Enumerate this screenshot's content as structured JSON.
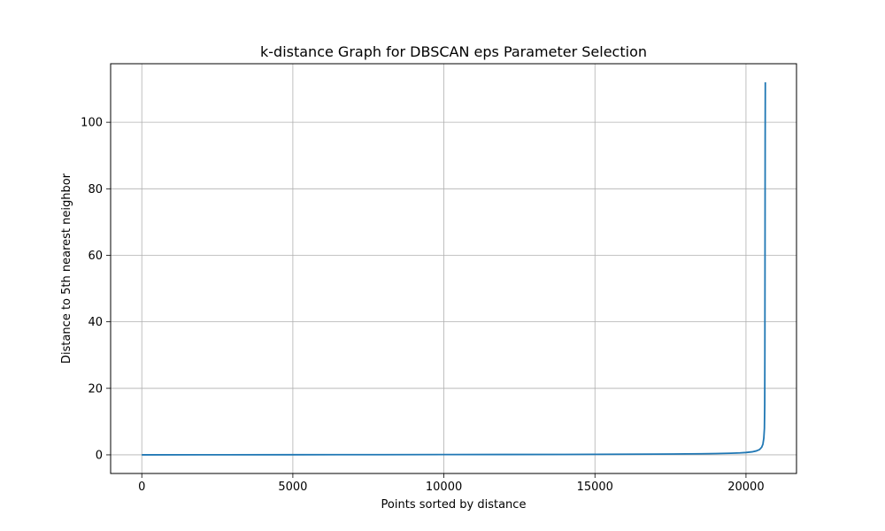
{
  "chart_data": {
    "type": "line",
    "title": "k-distance Graph for DBSCAN eps Parameter Selection",
    "xlabel": "Points sorted by distance",
    "ylabel": "Distance to 5th nearest neighbor",
    "xlim": [
      -1032,
      21672
    ],
    "ylim": [
      -5.6,
      117.6
    ],
    "xticks": [
      0,
      5000,
      10000,
      15000,
      20000
    ],
    "xtick_labels": [
      "0",
      "5000",
      "10000",
      "15000",
      "20000"
    ],
    "yticks": [
      0,
      20,
      40,
      60,
      80,
      100
    ],
    "ytick_labels": [
      "0",
      "20",
      "40",
      "60",
      "80",
      "100"
    ],
    "grid": true,
    "series": [
      {
        "color": "#1f77b4",
        "x": [
          0,
          2000,
          5000,
          8000,
          10000,
          12000,
          14000,
          15000,
          16000,
          17000,
          18000,
          18500,
          19000,
          19500,
          19800,
          20000,
          20200,
          20350,
          20450,
          20520,
          20560,
          20590,
          20610,
          20620,
          20625,
          20630,
          20635,
          20640
        ],
        "y": [
          0.0,
          0.02,
          0.04,
          0.06,
          0.08,
          0.1,
          0.13,
          0.15,
          0.18,
          0.22,
          0.28,
          0.32,
          0.38,
          0.48,
          0.58,
          0.7,
          0.9,
          1.2,
          1.6,
          2.3,
          3.2,
          5.0,
          8.0,
          15.0,
          30.0,
          60.0,
          95.0,
          112.0
        ]
      }
    ]
  }
}
